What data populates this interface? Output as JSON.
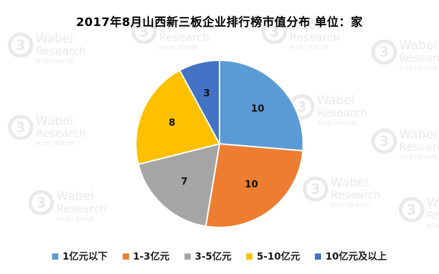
{
  "chart_data": {
    "type": "pie",
    "title": "2017年8月山西新三板企业排行榜市值分布 单位：家",
    "categories": [
      "1亿元以下",
      "1-3亿元",
      "3-5亿元",
      "5-10亿元",
      "10亿元及以上"
    ],
    "values": [
      10,
      10,
      7,
      8,
      3
    ],
    "colors": [
      "#5B9BD5",
      "#ED7D31",
      "#A5A5A5",
      "#FFC000",
      "#4472C4"
    ],
    "start_angle_deg": 0,
    "direction": "clockwise",
    "legend_position": "bottom",
    "data_labels": true
  },
  "watermark": {
    "brand": "Wabei",
    "sub": "Research",
    "cn": "挖贝新三板研究院",
    "logo_text": "3"
  }
}
